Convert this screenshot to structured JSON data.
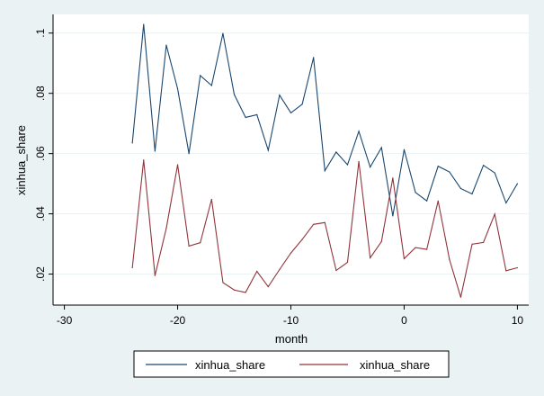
{
  "chart_data": {
    "type": "line",
    "title": "",
    "xlabel": "month",
    "ylabel": "xinhua_share",
    "xlim": [
      -31,
      11
    ],
    "ylim": [
      0.0097,
      0.1062
    ],
    "xticks": [
      -30,
      -20,
      -10,
      0,
      10
    ],
    "xtick_labels": [
      "-30",
      "-20",
      "-10",
      "0",
      "10"
    ],
    "yticks": [
      0.02,
      0.04,
      0.06,
      0.08,
      0.1
    ],
    "ytick_labels": [
      ".02",
      ".04",
      ".06",
      ".08",
      ".1"
    ],
    "x": [
      -24,
      -23,
      -22,
      -21,
      -20,
      -19,
      -18,
      -17,
      -16,
      -15,
      -14,
      -13,
      -12,
      -11,
      -10,
      -9,
      -8,
      -7,
      -6,
      -5,
      -4,
      -3,
      -2,
      -1,
      0,
      1,
      2,
      3,
      4,
      5,
      6,
      7,
      8,
      9,
      10
    ],
    "series": [
      {
        "name": "xinhua_share",
        "color": "#1a476f",
        "values": [
          0.0635,
          0.1029,
          0.0608,
          0.096,
          0.0815,
          0.06,
          0.0859,
          0.0826,
          0.0999,
          0.0796,
          0.072,
          0.0729,
          0.0611,
          0.0794,
          0.0735,
          0.0764,
          0.0919,
          0.0543,
          0.0605,
          0.0563,
          0.0674,
          0.0555,
          0.062,
          0.0393,
          0.0613,
          0.0471,
          0.0443,
          0.0558,
          0.0539,
          0.0484,
          0.0466,
          0.0561,
          0.0536,
          0.0436,
          0.05
        ]
      },
      {
        "name": "xinhua_share",
        "color": "#90353b",
        "values": [
          0.0221,
          0.0579,
          0.0195,
          0.0352,
          0.0563,
          0.0293,
          0.0304,
          0.0448,
          0.0172,
          0.0147,
          0.0139,
          0.0209,
          0.0158,
          0.0215,
          0.027,
          0.0315,
          0.0365,
          0.0371,
          0.0212,
          0.0239,
          0.0574,
          0.0254,
          0.0308,
          0.0519,
          0.0251,
          0.0288,
          0.0282,
          0.0443,
          0.0249,
          0.0123,
          0.0299,
          0.0305,
          0.0399,
          0.0211,
          0.0221
        ]
      }
    ],
    "legend_position": "bottom",
    "grid": "horizontal"
  }
}
